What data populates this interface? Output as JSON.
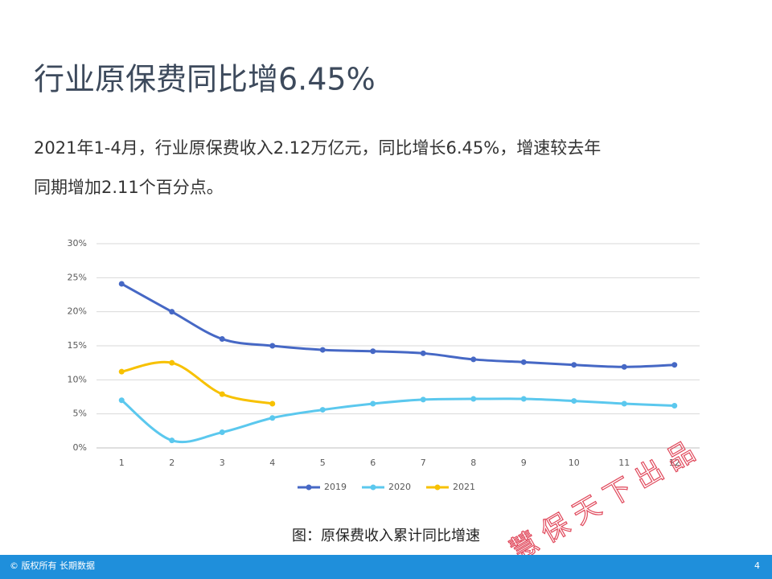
{
  "header": {
    "title": "行业原保费同比增6.45%",
    "body": [
      "2021年1-4月，行业原保费收入2.12万亿元，同比增长6.45%，增速较去年",
      "同期增加2.11个百分点。"
    ]
  },
  "chart_data": {
    "type": "line",
    "categories": [
      "1",
      "2",
      "3",
      "4",
      "5",
      "6",
      "7",
      "8",
      "9",
      "10",
      "11",
      "12"
    ],
    "series": [
      {
        "name": "2019",
        "color": "#4668c5",
        "values": [
          24.1,
          20.0,
          16.0,
          15.0,
          14.4,
          14.2,
          13.9,
          13.0,
          12.6,
          12.2,
          11.9,
          12.2
        ]
      },
      {
        "name": "2020",
        "color": "#5bc8ee",
        "values": [
          7.0,
          1.1,
          2.3,
          4.4,
          5.6,
          6.5,
          7.1,
          7.2,
          7.2,
          6.9,
          6.5,
          6.2
        ]
      },
      {
        "name": "2021",
        "color": "#f7c100",
        "values": [
          11.2,
          12.5,
          7.9,
          6.5,
          null,
          null,
          null,
          null,
          null,
          null,
          null,
          null
        ]
      }
    ],
    "ylim": [
      0,
      30
    ],
    "yticks": [
      {
        "value": 0,
        "label": "0%"
      },
      {
        "value": 5,
        "label": "5%"
      },
      {
        "value": 10,
        "label": "10%"
      },
      {
        "value": 15,
        "label": "15%"
      },
      {
        "value": 20,
        "label": "20%"
      },
      {
        "value": 25,
        "label": "25%"
      },
      {
        "value": 30,
        "label": "30%"
      }
    ],
    "grid": true,
    "legend": "bottom",
    "smooth": true
  },
  "caption": "图：原保费收入累计同比增速",
  "watermark": "慧 保 天 下 出 品",
  "footer": {
    "copyright": "© 版权所有 长期数据",
    "page": "4"
  }
}
